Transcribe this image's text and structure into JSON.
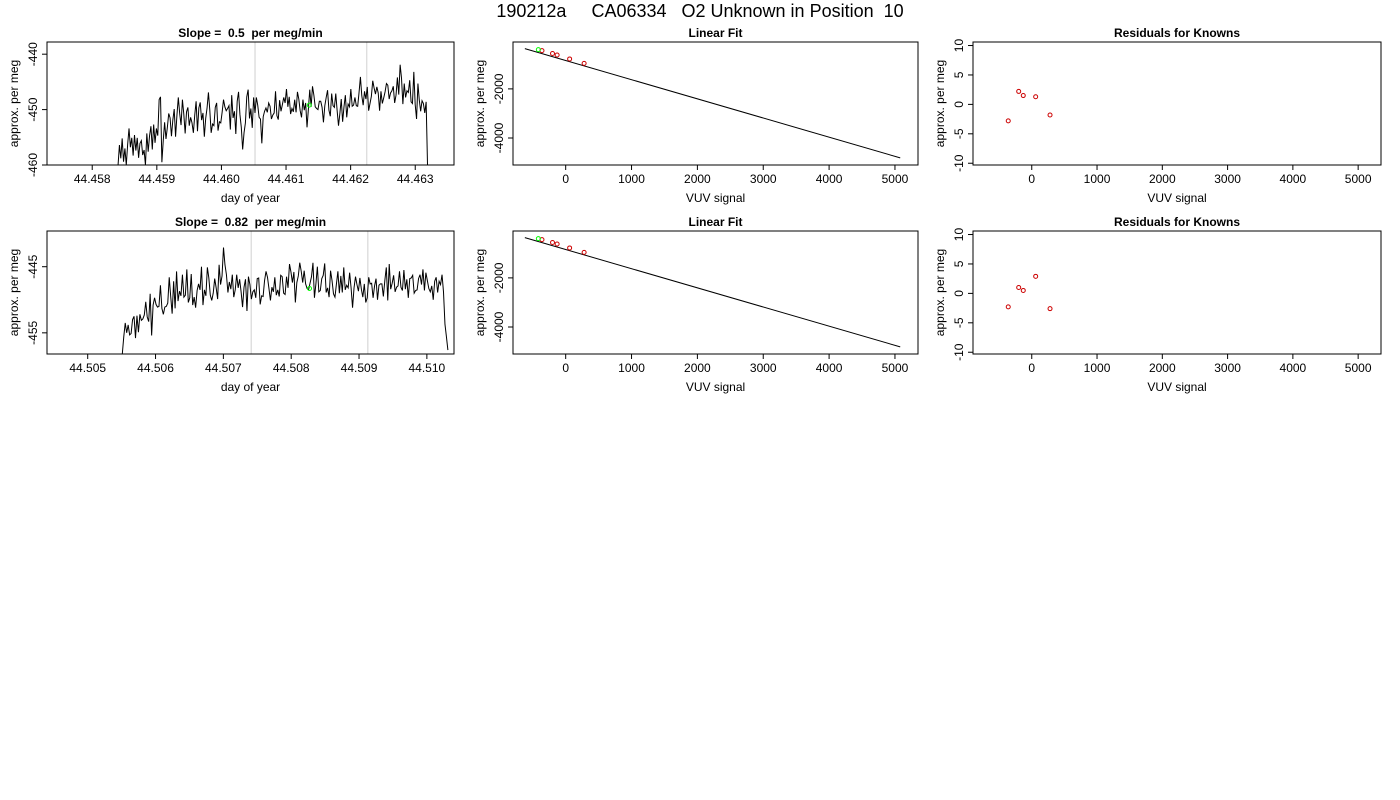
{
  "page_title": "190212a     CA06334   O2 Unknown in Position  10",
  "chart_data": [
    {
      "id": "trace-1",
      "type": "line",
      "title": "Slope =  0.5  per meg/min",
      "xlabel": "day of year",
      "ylabel": "approx. per meg",
      "xlim": [
        44.4573,
        44.4636
      ],
      "ylim": [
        -460,
        -437.8
      ],
      "xticks": [
        44.458,
        44.459,
        44.46,
        44.461,
        44.462,
        44.463
      ],
      "xtick_labels": [
        "44.458",
        "44.459",
        "44.460",
        "44.461",
        "44.462",
        "44.463"
      ],
      "yticks": [
        -440,
        -450,
        -460
      ],
      "ytick_labels": [
        "-440",
        "-450",
        "-460"
      ],
      "x_start": 44.4584,
      "x_end": 44.46319,
      "values": [
        -460,
        -456.4,
        -458.8,
        -455.2,
        -459.4,
        -457,
        -460,
        -456.3,
        -453.4,
        -456.8,
        -455.1,
        -458.3,
        -454.6,
        -457.4,
        -455.1,
        -458.7,
        -456.1,
        -455.6,
        -458.2,
        -457.3,
        -460,
        -454.3,
        -457.6,
        -454.7,
        -453,
        -457.2,
        -452.7,
        -456,
        -453.4,
        -454.7,
        -448.2,
        -447.7,
        -459.5,
        -455.6,
        -452.3,
        -455.3,
        -453.2,
        -450.7,
        -451.5,
        -454.8,
        -451.9,
        -449.9,
        -454.9,
        -451,
        -447.8,
        -450.7,
        -452.8,
        -448.2,
        -450.8,
        -454.3,
        -450.4,
        -449.6,
        -452.9,
        -451.4,
        -452.4,
        -454.2,
        -451,
        -448.5,
        -453.9,
        -449.7,
        -448.7,
        -451.9,
        -450.6,
        -454.9,
        -451.6,
        -449.7,
        -446.9,
        -450.1,
        -454.2,
        -452.6,
        -452.9,
        -449.6,
        -448.8,
        -453.8,
        -452.2,
        -452.4,
        -450.5,
        -448.2,
        -449.5,
        -450.2,
        -449.8,
        -449.3,
        -453.6,
        -447.4,
        -451.5,
        -450.3,
        -454.4,
        -448.5,
        -446.8,
        -450.9,
        -453.2,
        -457.2,
        -454.2,
        -452.4,
        -447.7,
        -446.4,
        -451.6,
        -449.8,
        -453.3,
        -447.8,
        -450.6,
        -447.8,
        -449.2,
        -451.4,
        -451.7,
        -456.1,
        -451.3,
        -450.3,
        -449.7,
        -450.5,
        -448.8,
        -449.4,
        -451.7,
        -451,
        -450.6,
        -446.7,
        -451.1,
        -451.8,
        -448.3,
        -450.3,
        -449.1,
        -447.8,
        -448.8,
        -446.3,
        -449.5,
        -447.7,
        -450.8,
        -449.8,
        -450.4,
        -448.2,
        -450.5,
        -446.8,
        -448.1,
        -450.2,
        -451.4,
        -448.2,
        -450.1,
        -448.8,
        -453.2,
        -449.9,
        -446.4,
        -449.5,
        -445.8,
        -447.4,
        -449.5,
        -449.8,
        -450,
        -448.5,
        -448.5,
        -449.6,
        -452.3,
        -449.3,
        -447.8,
        -446.5,
        -450.1,
        -451.2,
        -447.1,
        -449.3,
        -449.6,
        -447.1,
        -450.2,
        -452.9,
        -450.7,
        -448.1,
        -452.2,
        -449.5,
        -447.4,
        -451.4,
        -449,
        -449.5,
        -446.3,
        -449.4,
        -449.2,
        -447.8,
        -449.3,
        -449.4,
        -446.9,
        -444.1,
        -447.5,
        -449.2,
        -446.7,
        -448.1,
        -445.9,
        -450.2,
        -448.9,
        -447.6,
        -444.8,
        -446.1,
        -447.2,
        -445.9,
        -447,
        -450.2,
        -446.7,
        -448.9,
        -447.9,
        -446.8,
        -445.3,
        -445.6,
        -448.1,
        -447,
        -446.6,
        -445.8,
        -448.8,
        -447.4,
        -444.2,
        -447.3,
        -441.9,
        -444.3,
        -449,
        -445.3,
        -447.8,
        -446.6,
        -446.9,
        -444.7,
        -448.6,
        -448.9,
        -443.2,
        -449.1,
        -451.7,
        -445.3,
        -448.3,
        -450.3,
        -448.4,
        -448.9,
        -450.6,
        -448.6,
        -460
      ],
      "marker": {
        "x": 44.46136,
        "y": -449.2,
        "color": "#00ff00"
      },
      "vlines": [
        44.46052,
        44.46225
      ],
      "vline_color": "#d0d0d0"
    },
    {
      "id": "fit-1",
      "type": "scatter",
      "title": "Linear Fit",
      "xlabel": "VUV signal",
      "ylabel": "approx. per meg",
      "xlim": [
        -800,
        5350
      ],
      "ylim": [
        -5100,
        -90
      ],
      "xticks": [
        0,
        1000,
        2000,
        3000,
        4000,
        5000
      ],
      "xtick_labels": [
        "0",
        "1000",
        "2000",
        "3000",
        "4000",
        "5000"
      ],
      "yticks": [
        -2000,
        -4000
      ],
      "ytick_labels": [
        "-2000",
        "-4000"
      ],
      "fit_line": {
        "x": [
          -620,
          5080
        ],
        "y": [
          -360,
          -4810
        ]
      },
      "knowns": {
        "x": [
          -360,
          -200,
          -130,
          60,
          280
        ],
        "y": [
          -440,
          -560,
          -620,
          -780,
          -960
        ],
        "color": "#cc0000"
      },
      "unknown": {
        "x": [
          -415
        ],
        "y": [
          -400
        ],
        "color": "#00ff00"
      }
    },
    {
      "id": "resid-1",
      "type": "scatter",
      "title": "Residuals for Knowns",
      "xlabel": "VUV signal",
      "ylabel": "approx. per meg",
      "xlim": [
        -900,
        5350
      ],
      "ylim": [
        -10.3,
        10.6
      ],
      "xticks": [
        0,
        1000,
        2000,
        3000,
        4000,
        5000
      ],
      "xtick_labels": [
        "0",
        "1000",
        "2000",
        "3000",
        "4000",
        "5000"
      ],
      "yticks": [
        10,
        5,
        0,
        -5,
        -10
      ],
      "ytick_labels": [
        "10",
        "5",
        "0",
        "-5",
        "-10"
      ],
      "points": {
        "x": [
          -360,
          -200,
          -130,
          60,
          280
        ],
        "y": [
          -2.8,
          2.2,
          1.5,
          1.3,
          -1.8
        ],
        "color": "#cc0000"
      }
    },
    {
      "id": "trace-2",
      "type": "line",
      "title": "Slope =  0.82  per meg/min",
      "xlabel": "day of year",
      "ylabel": "approx. per meg",
      "xlim": [
        44.5044,
        44.5104
      ],
      "ylim": [
        -458.2,
        -439.6
      ],
      "xticks": [
        44.505,
        44.506,
        44.507,
        44.508,
        44.509,
        44.51
      ],
      "xtick_labels": [
        "44.505",
        "44.506",
        "44.507",
        "44.508",
        "44.509",
        "44.510"
      ],
      "yticks": [
        -445,
        -455
      ],
      "ytick_labels": [
        "-445",
        "-455"
      ],
      "x_start": 44.50551,
      "x_end": 44.51031,
      "values": [
        -458.2,
        -455.6,
        -453.5,
        -455,
        -453.8,
        -455.3,
        -455.1,
        -453,
        -452.5,
        -455.8,
        -452.4,
        -454.9,
        -452.2,
        -453.1,
        -452.9,
        -452.3,
        -450.3,
        -452.6,
        -453.3,
        -449.1,
        -455.4,
        -450.8,
        -449.7,
        -450.7,
        -451.1,
        -451,
        -447.8,
        -451.3,
        -452.2,
        -451.1,
        -451,
        -450.5,
        -446.6,
        -449.5,
        -452.1,
        -447.2,
        -451.3,
        -445.7,
        -450.2,
        -448.7,
        -449.4,
        -446.2,
        -449.6,
        -449.3,
        -445.4,
        -450.4,
        -449.7,
        -446.1,
        -450.8,
        -449.6,
        -451.2,
        -448.6,
        -447.6,
        -448.5,
        -445,
        -450.8,
        -448.5,
        -449.4,
        -445.1,
        -446.7,
        -449.3,
        -450.1,
        -449,
        -446.8,
        -448.2,
        -449.9,
        -444.7,
        -447.7,
        -446.4,
        -442.1,
        -444.7,
        -446.2,
        -448.9,
        -447.3,
        -448.4,
        -446.2,
        -449.6,
        -448.5,
        -446.2,
        -448.2,
        -446.9,
        -448.8,
        -451.1,
        -448.1,
        -446.9,
        -451.7,
        -446.5,
        -447.7,
        -449.9,
        -448.8,
        -448.5,
        -449.7,
        -446.8,
        -446.7,
        -450.7,
        -449.4,
        -449.5,
        -447.1,
        -445.7,
        -446.6,
        -448.3,
        -450.1,
        -448.1,
        -448.8,
        -446.6,
        -449.3,
        -448.5,
        -449.5,
        -446.3,
        -446.5,
        -449,
        -449.2,
        -446.5,
        -448.2,
        -444.6,
        -445.8,
        -447.4,
        -445.8,
        -450.4,
        -447.4,
        -446.4,
        -444.4,
        -445.7,
        -447.4,
        -445.6,
        -447.6,
        -448.3,
        -448.5,
        -447.5,
        -446.5,
        -444.4,
        -449.7,
        -447.6,
        -445,
        -448.8,
        -448.6,
        -446.8,
        -446.3,
        -444.5,
        -448.9,
        -448.2,
        -449.6,
        -445.6,
        -447.1,
        -449.1,
        -449.6,
        -447.6,
        -445.7,
        -449,
        -446.4,
        -448.9,
        -445.1,
        -448.5,
        -447.8,
        -448.2,
        -445.9,
        -448.2,
        -451.2,
        -448.2,
        -446.5,
        -447.7,
        -448.7,
        -446.7,
        -448.4,
        -449.6,
        -447.6,
        -450.4,
        -449.7,
        -446.6,
        -447.6,
        -447.5,
        -449.7,
        -447.9,
        -446.8,
        -450,
        -447.8,
        -447.6,
        -447.6,
        -449.5,
        -447.1,
        -445.1,
        -450.1,
        -444.6,
        -448.4,
        -447.5,
        -446.3,
        -448.8,
        -448.1,
        -447.9,
        -445.7,
        -448.1,
        -448.6,
        -445.5,
        -448.4,
        -446.9,
        -449.7,
        -446.8,
        -446.7,
        -446.3,
        -449,
        -448.6,
        -448.5,
        -446.8,
        -446.2,
        -447.7,
        -445.4,
        -448.6,
        -445.9,
        -447.1,
        -448.3,
        -448.8,
        -447.9,
        -450,
        -447.2,
        -446.6,
        -448.9,
        -447.2,
        -447.7,
        -446.2,
        -448.8,
        -453.7,
        -455.6,
        -457.6
      ],
      "marker": {
        "x": 44.50827,
        "y": -448.3,
        "color": "#00ff00"
      },
      "vlines": [
        44.50741,
        44.50913
      ],
      "vline_color": "#d0d0d0"
    },
    {
      "id": "fit-2",
      "type": "scatter",
      "title": "Linear Fit",
      "xlabel": "VUV signal",
      "ylabel": "approx. per meg",
      "xlim": [
        -800,
        5350
      ],
      "ylim": [
        -5100,
        -90
      ],
      "xticks": [
        0,
        1000,
        2000,
        3000,
        4000,
        5000
      ],
      "xtick_labels": [
        "0",
        "1000",
        "2000",
        "3000",
        "4000",
        "5000"
      ],
      "yticks": [
        -2000,
        -4000
      ],
      "ytick_labels": [
        "-2000",
        "-4000"
      ],
      "fit_line": {
        "x": [
          -620,
          5080
        ],
        "y": [
          -360,
          -4810
        ]
      },
      "knowns": {
        "x": [
          -360,
          -200,
          -130,
          60,
          280
        ],
        "y": [
          -440,
          -560,
          -620,
          -780,
          -960
        ],
        "color": "#cc0000"
      },
      "unknown": {
        "x": [
          -415
        ],
        "y": [
          -400
        ],
        "color": "#00ff00"
      }
    },
    {
      "id": "resid-2",
      "type": "scatter",
      "title": "Residuals for Knowns",
      "xlabel": "VUV signal",
      "ylabel": "approx. per meg",
      "xlim": [
        -900,
        5350
      ],
      "ylim": [
        -10.3,
        10.6
      ],
      "xticks": [
        0,
        1000,
        2000,
        3000,
        4000,
        5000
      ],
      "xtick_labels": [
        "0",
        "1000",
        "2000",
        "3000",
        "4000",
        "5000"
      ],
      "yticks": [
        10,
        5,
        0,
        -5,
        -10
      ],
      "ytick_labels": [
        "10",
        "5",
        "0",
        "-5",
        "-10"
      ],
      "points": {
        "x": [
          -360,
          -200,
          -130,
          60,
          280
        ],
        "y": [
          -2.3,
          1.0,
          0.5,
          2.9,
          -2.6
        ],
        "color": "#cc0000"
      }
    }
  ]
}
